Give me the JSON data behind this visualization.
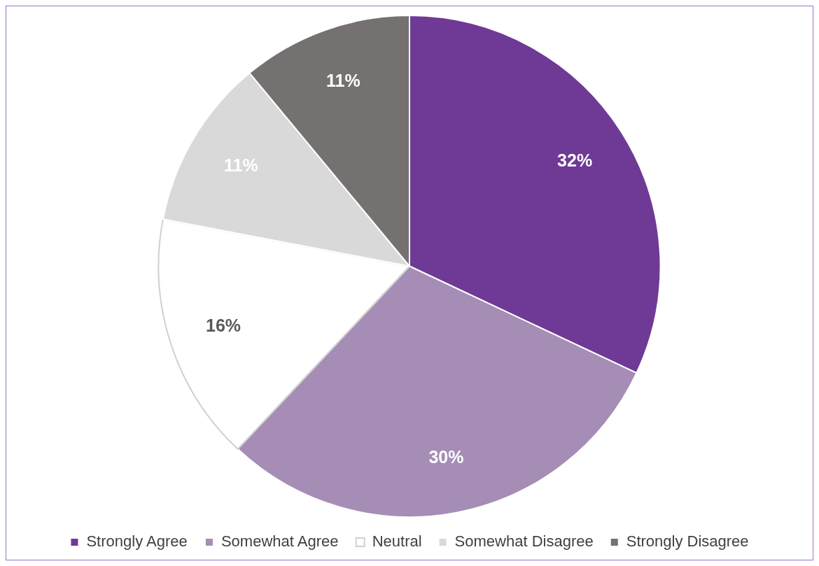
{
  "chart_data": {
    "type": "pie",
    "categories": [
      "Strongly Agree",
      "Somewhat Agree",
      "Neutral",
      "Somewhat Disagree",
      "Strongly Disagree"
    ],
    "values": [
      32,
      30,
      16,
      11,
      11
    ],
    "colors": [
      "#6f3996",
      "#a58db5",
      "#ffffff",
      "#d9d9d9",
      "#757171"
    ],
    "value_labels": [
      "32%",
      "30%",
      "16%",
      "11%",
      "11%"
    ],
    "legend": "bottom"
  }
}
